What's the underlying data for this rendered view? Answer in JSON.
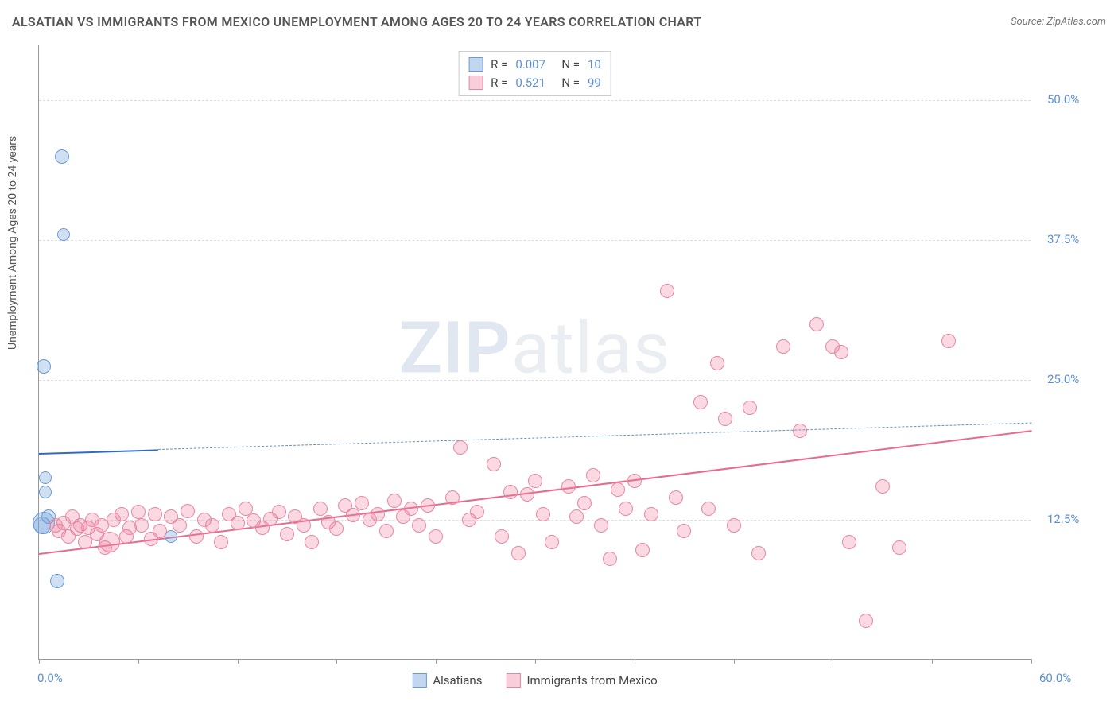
{
  "title": "ALSATIAN VS IMMIGRANTS FROM MEXICO UNEMPLOYMENT AMONG AGES 20 TO 24 YEARS CORRELATION CHART",
  "source": "Source: ZipAtlas.com",
  "y_axis_label": "Unemployment Among Ages 20 to 24 years",
  "watermark_a": "ZIP",
  "watermark_b": "atlas",
  "chart": {
    "type": "scatter",
    "xlim": [
      0,
      60
    ],
    "ylim": [
      0,
      55
    ],
    "x_tick_min_label": "0.0%",
    "x_tick_max_label": "60.0%",
    "x_tick_positions": [
      0,
      6,
      12,
      18,
      24,
      30,
      36,
      42,
      48,
      54,
      60
    ],
    "y_ticks": [
      {
        "v": 12.5,
        "label": "12.5%"
      },
      {
        "v": 25.0,
        "label": "25.0%"
      },
      {
        "v": 37.5,
        "label": "37.5%"
      },
      {
        "v": 50.0,
        "label": "50.0%"
      }
    ],
    "background_color": "#ffffff",
    "grid_color": "#dddddd",
    "axis_color": "#999999",
    "series": [
      {
        "name": "Alsatians",
        "fill_color": "rgba(120,165,220,0.35)",
        "stroke_color": "#6a9bd6",
        "marker_radius": 8,
        "R": "0.007",
        "N": "10",
        "trend": {
          "x1": 0,
          "y1": 18.5,
          "x2": 60,
          "y2": 21.2,
          "solid_frac": 0.12,
          "color": "#2f6bc4"
        },
        "points": [
          {
            "x": 0.2,
            "y": 12.0,
            "r": 11
          },
          {
            "x": 0.3,
            "y": 12.2,
            "r": 14
          },
          {
            "x": 0.6,
            "y": 12.8,
            "r": 9
          },
          {
            "x": 1.4,
            "y": 45.0,
            "r": 9
          },
          {
            "x": 1.5,
            "y": 38.0,
            "r": 8
          },
          {
            "x": 0.3,
            "y": 26.2,
            "r": 9
          },
          {
            "x": 0.4,
            "y": 15.0,
            "r": 8
          },
          {
            "x": 0.4,
            "y": 16.3,
            "r": 8
          },
          {
            "x": 1.1,
            "y": 7.0,
            "r": 9
          },
          {
            "x": 8.0,
            "y": 11.0,
            "r": 8
          }
        ]
      },
      {
        "name": "Immigrants from Mexico",
        "fill_color": "rgba(240,130,160,0.30)",
        "stroke_color": "#e787a3",
        "marker_radius": 9,
        "R": "0.521",
        "N": "99",
        "trend": {
          "x1": 0,
          "y1": 9.5,
          "x2": 60,
          "y2": 20.5,
          "solid_frac": 1.0,
          "color": "#e86a8d"
        },
        "points": [
          {
            "x": 1,
            "y": 12.0
          },
          {
            "x": 1.2,
            "y": 11.5
          },
          {
            "x": 1.5,
            "y": 12.2
          },
          {
            "x": 1.8,
            "y": 11.0
          },
          {
            "x": 2.0,
            "y": 12.8
          },
          {
            "x": 2.3,
            "y": 11.7
          },
          {
            "x": 2.5,
            "y": 12.0
          },
          {
            "x": 2.8,
            "y": 10.5
          },
          {
            "x": 3.0,
            "y": 11.8
          },
          {
            "x": 3.2,
            "y": 12.5
          },
          {
            "x": 3.5,
            "y": 11.2
          },
          {
            "x": 3.8,
            "y": 12.0
          },
          {
            "x": 4.0,
            "y": 10.0
          },
          {
            "x": 4.3,
            "y": 10.5,
            "r": 13
          },
          {
            "x": 4.5,
            "y": 12.5
          },
          {
            "x": 5.0,
            "y": 13.0
          },
          {
            "x": 5.3,
            "y": 11.0
          },
          {
            "x": 5.5,
            "y": 11.8
          },
          {
            "x": 6.0,
            "y": 13.2
          },
          {
            "x": 6.2,
            "y": 12.0
          },
          {
            "x": 6.8,
            "y": 10.8
          },
          {
            "x": 7.0,
            "y": 13.0
          },
          {
            "x": 7.3,
            "y": 11.5
          },
          {
            "x": 8.0,
            "y": 12.8
          },
          {
            "x": 8.5,
            "y": 12.0
          },
          {
            "x": 9.0,
            "y": 13.3
          },
          {
            "x": 9.5,
            "y": 11.0
          },
          {
            "x": 10.0,
            "y": 12.5
          },
          {
            "x": 10.5,
            "y": 12.0
          },
          {
            "x": 11.0,
            "y": 10.5
          },
          {
            "x": 11.5,
            "y": 13.0
          },
          {
            "x": 12.0,
            "y": 12.2
          },
          {
            "x": 12.5,
            "y": 13.5
          },
          {
            "x": 13.0,
            "y": 12.4
          },
          {
            "x": 13.5,
            "y": 11.8
          },
          {
            "x": 14.0,
            "y": 12.6
          },
          {
            "x": 14.5,
            "y": 13.2
          },
          {
            "x": 15.0,
            "y": 11.2
          },
          {
            "x": 15.5,
            "y": 12.8
          },
          {
            "x": 16.0,
            "y": 12.0
          },
          {
            "x": 16.5,
            "y": 10.5
          },
          {
            "x": 17.0,
            "y": 13.5
          },
          {
            "x": 17.5,
            "y": 12.3
          },
          {
            "x": 18.0,
            "y": 11.7
          },
          {
            "x": 18.5,
            "y": 13.8
          },
          {
            "x": 19.0,
            "y": 12.9
          },
          {
            "x": 19.5,
            "y": 14.0
          },
          {
            "x": 20.0,
            "y": 12.5
          },
          {
            "x": 20.5,
            "y": 13.0
          },
          {
            "x": 21.0,
            "y": 11.5
          },
          {
            "x": 21.5,
            "y": 14.2
          },
          {
            "x": 22.0,
            "y": 12.8
          },
          {
            "x": 22.5,
            "y": 13.5
          },
          {
            "x": 23.0,
            "y": 12.0
          },
          {
            "x": 23.5,
            "y": 13.8
          },
          {
            "x": 24.0,
            "y": 11.0
          },
          {
            "x": 25.0,
            "y": 14.5
          },
          {
            "x": 25.5,
            "y": 19.0
          },
          {
            "x": 26.0,
            "y": 12.5
          },
          {
            "x": 26.5,
            "y": 13.2
          },
          {
            "x": 27.5,
            "y": 17.5
          },
          {
            "x": 28.0,
            "y": 11.0
          },
          {
            "x": 28.5,
            "y": 15.0
          },
          {
            "x": 29.0,
            "y": 9.5
          },
          {
            "x": 29.5,
            "y": 14.8
          },
          {
            "x": 30.0,
            "y": 16.0
          },
          {
            "x": 30.5,
            "y": 13.0
          },
          {
            "x": 31.0,
            "y": 10.5
          },
          {
            "x": 32.0,
            "y": 15.5
          },
          {
            "x": 32.5,
            "y": 12.8
          },
          {
            "x": 33.0,
            "y": 14.0
          },
          {
            "x": 33.5,
            "y": 16.5
          },
          {
            "x": 34.0,
            "y": 12.0
          },
          {
            "x": 34.5,
            "y": 9.0
          },
          {
            "x": 35.0,
            "y": 15.2
          },
          {
            "x": 35.5,
            "y": 13.5
          },
          {
            "x": 36.0,
            "y": 16.0
          },
          {
            "x": 36.5,
            "y": 9.8
          },
          {
            "x": 37.0,
            "y": 13.0
          },
          {
            "x": 38.0,
            "y": 33.0
          },
          {
            "x": 38.5,
            "y": 14.5
          },
          {
            "x": 39.0,
            "y": 11.5
          },
          {
            "x": 40.0,
            "y": 23.0
          },
          {
            "x": 40.5,
            "y": 13.5
          },
          {
            "x": 41.0,
            "y": 26.5
          },
          {
            "x": 41.5,
            "y": 21.5
          },
          {
            "x": 42.0,
            "y": 12.0
          },
          {
            "x": 43.0,
            "y": 22.5
          },
          {
            "x": 43.5,
            "y": 9.5
          },
          {
            "x": 45.0,
            "y": 28.0
          },
          {
            "x": 46.0,
            "y": 20.5
          },
          {
            "x": 47.0,
            "y": 30.0
          },
          {
            "x": 48.0,
            "y": 28.0
          },
          {
            "x": 48.5,
            "y": 27.5
          },
          {
            "x": 49.0,
            "y": 10.5
          },
          {
            "x": 50.0,
            "y": 3.5
          },
          {
            "x": 51.0,
            "y": 15.5
          },
          {
            "x": 52.0,
            "y": 10.0
          },
          {
            "x": 55.0,
            "y": 28.5
          }
        ]
      }
    ]
  },
  "legend_top_rows": [
    {
      "swatch_fill": "rgba(120,165,220,0.45)",
      "swatch_stroke": "#6a9bd6",
      "r_label": "R =",
      "r_val": "0.007",
      "n_label": "N =",
      "n_val": "10"
    },
    {
      "swatch_fill": "rgba(240,130,160,0.40)",
      "swatch_stroke": "#e787a3",
      "r_label": "R =",
      "r_val": "0.521",
      "n_label": "N =",
      "n_val": "99"
    }
  ],
  "legend_bottom": [
    {
      "swatch_fill": "rgba(120,165,220,0.45)",
      "swatch_stroke": "#6a9bd6",
      "label": "Alsatians"
    },
    {
      "swatch_fill": "rgba(240,130,160,0.40)",
      "swatch_stroke": "#e787a3",
      "label": "Immigrants from Mexico"
    }
  ]
}
